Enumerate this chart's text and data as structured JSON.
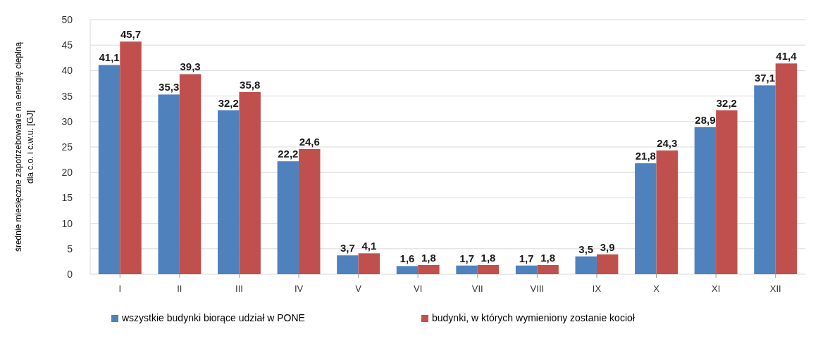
{
  "chart_data": {
    "type": "bar",
    "ylabel": "średnie miesięczne zapotrzebowanie na energię cieplną\ndla c.o. i c.w.u. [GJ]",
    "categories": [
      "I",
      "II",
      "III",
      "IV",
      "V",
      "VI",
      "VII",
      "VIII",
      "IX",
      "X",
      "XI",
      "XII"
    ],
    "series": [
      {
        "name": "wszystkie budynki biorące udział w PONE",
        "color": "#4f81bd",
        "values": [
          41.1,
          35.3,
          32.2,
          22.2,
          3.7,
          1.6,
          1.7,
          1.7,
          3.5,
          21.8,
          28.9,
          37.1
        ],
        "value_labels": [
          "41,1",
          "35,3",
          "32,2",
          "22,2",
          "3,7",
          "1,6",
          "1,7",
          "1,7",
          "3,5",
          "21,8",
          "28,9",
          "37,1"
        ]
      },
      {
        "name": "budynki, w których wymieniony zostanie kocioł",
        "color": "#c0504d",
        "values": [
          45.7,
          39.3,
          35.8,
          24.6,
          4.1,
          1.8,
          1.8,
          1.8,
          3.9,
          24.3,
          32.2,
          41.4
        ],
        "value_labels": [
          "45,7",
          "39,3",
          "35,8",
          "24,6",
          "4,1",
          "1,8",
          "1,8",
          "1,8",
          "3,9",
          "24,3",
          "32,2",
          "41,4"
        ]
      }
    ],
    "ylim": [
      0,
      50
    ],
    "yticks": [
      0,
      5,
      10,
      15,
      20,
      25,
      30,
      35,
      40,
      45,
      50
    ],
    "grid": "y",
    "legend": "bottom"
  }
}
